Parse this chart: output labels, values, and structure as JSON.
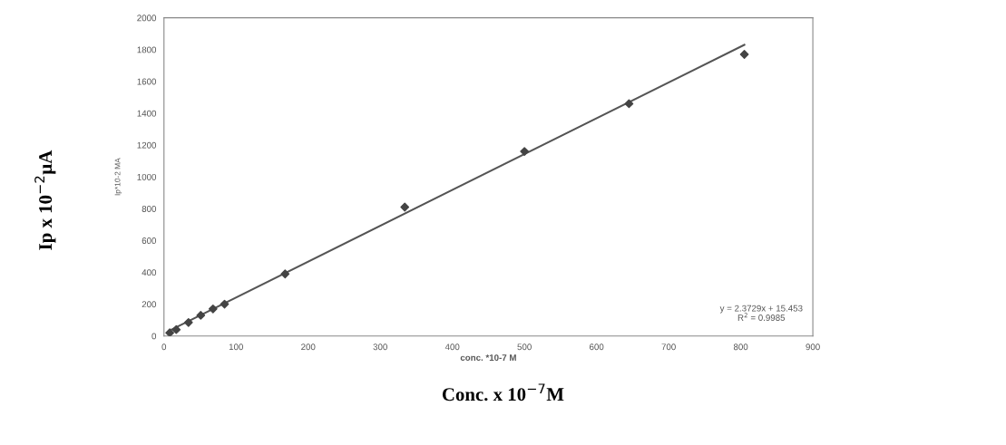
{
  "chart_data": {
    "type": "scatter",
    "xlabel": "conc. *10-7 M",
    "ylabel": "Ip*10-2 MA",
    "annotations": [
      "Ip x 10$^{−2}$µA",
      "Conc. x 10$^{−7}$M",
      "y = 2.3729x + 15.453\nR$^{2}$ = 0.9985"
    ],
    "x": [
      8,
      17,
      34,
      51,
      68,
      84,
      168,
      334,
      500,
      645,
      805
    ],
    "series": [
      {
        "color": "#444444",
        "marker": "diamond",
        "values": [
          20,
          40,
          85,
          130,
          170,
          200,
          390,
          810,
          1160,
          1460,
          1770
        ]
      },
      {
        "type": "line",
        "color": "#555555",
        "x": [
          8,
          805
        ],
        "values": [
          35,
          1830
        ],
        "line_style": "solid",
        "marker": "none"
      }
    ],
    "xlim": [
      0,
      900
    ],
    "xticks": [
      0,
      100,
      200,
      300,
      400,
      500,
      600,
      700,
      800,
      900
    ],
    "ylim": [
      0,
      2000
    ],
    "yticks": [
      0,
      200,
      400,
      600,
      800,
      1000,
      1200,
      1400,
      1600,
      1800,
      2000
    ],
    "grid": false,
    "legend": false
  }
}
